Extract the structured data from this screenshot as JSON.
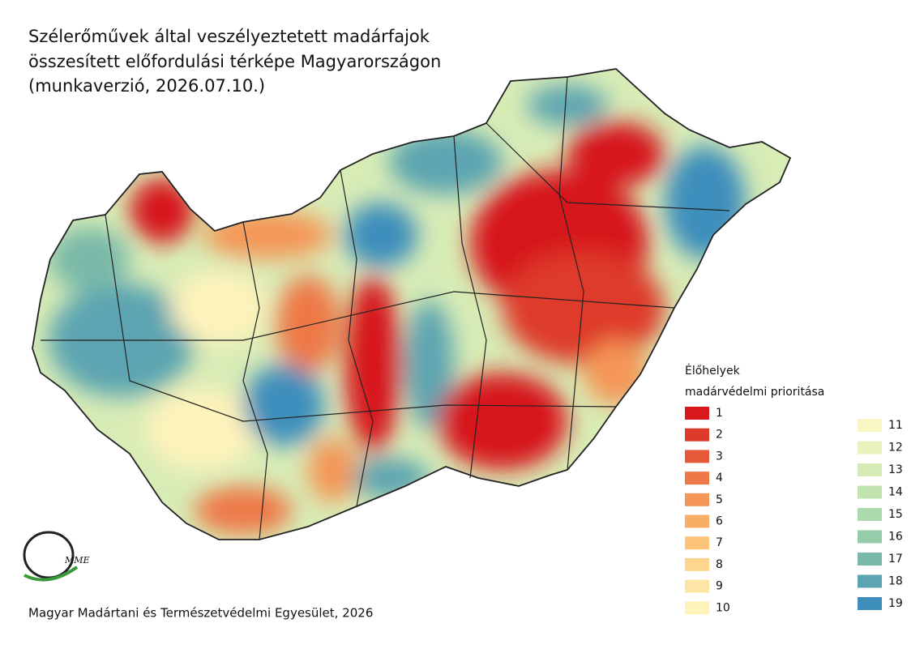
{
  "title": [
    "Szélerőművek által veszélyeztetett madárfajok",
    "összesített előfordulási térképe Magyarországon",
    "(munkaverzió, 2026.07.10.)"
  ],
  "legend": {
    "title": [
      "Élőhelyek",
      "madárvédelmi prioritása"
    ],
    "items": [
      {
        "label": 1,
        "color": "#d7191c"
      },
      {
        "label": 2,
        "color": "#de3a2c"
      },
      {
        "label": 3,
        "color": "#e6583a"
      },
      {
        "label": 4,
        "color": "#ee7847"
      },
      {
        "label": 5,
        "color": "#f49656"
      },
      {
        "label": 6,
        "color": "#f8ae64"
      },
      {
        "label": 7,
        "color": "#fbc478"
      },
      {
        "label": 8,
        "color": "#fdd58e"
      },
      {
        "label": 9,
        "color": "#fee5a5"
      },
      {
        "label": 10,
        "color": "#fff3bb"
      },
      {
        "label": 11,
        "color": "#f8f7c3"
      },
      {
        "label": 12,
        "color": "#e7f2bc"
      },
      {
        "label": 13,
        "color": "#d5ebb5"
      },
      {
        "label": 14,
        "color": "#c1e3af"
      },
      {
        "label": 15,
        "color": "#abd9ac"
      },
      {
        "label": 16,
        "color": "#94cda9"
      },
      {
        "label": 17,
        "color": "#79b9a9"
      },
      {
        "label": 18,
        "color": "#5ca4b1"
      },
      {
        "label": 19,
        "color": "#3e8ebc"
      }
    ]
  },
  "logo": "MME",
  "footer": "Magyar Madártani és Természetvédelmi Egyesület, 2026"
}
